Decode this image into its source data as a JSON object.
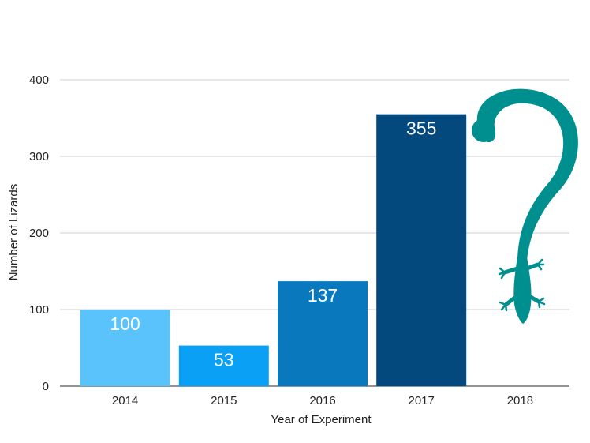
{
  "chart_data": {
    "type": "bar",
    "categories": [
      "2014",
      "2015",
      "2016",
      "2017",
      "2018"
    ],
    "values": [
      100,
      53,
      137,
      355,
      null
    ],
    "value_labels": [
      "100",
      "53",
      "137",
      "355",
      ""
    ],
    "bar_colors": [
      "#5bc3fb",
      "#0aa0f5",
      "#0a78bd",
      "#03497d",
      "#008f8f"
    ],
    "xlabel": "Year of Experiment",
    "ylabel": "Number of Lizards",
    "ylim": [
      0,
      400
    ],
    "yticks": [
      0,
      100,
      200,
      300,
      400
    ],
    "grid": true,
    "annotation": {
      "icon": "lizard-question-mark-icon",
      "category": "2018",
      "color": "#008f8f"
    }
  }
}
